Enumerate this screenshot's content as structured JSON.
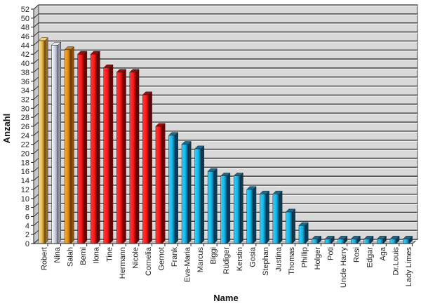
{
  "chart_data": {
    "type": "bar",
    "title": "",
    "xlabel": "Name",
    "ylabel": "Anzahl",
    "ylim": [
      0,
      52
    ],
    "ytick_step": 2,
    "grid": true,
    "style": "3d",
    "categories": [
      "Robert",
      "Nina",
      "Salah",
      "Berni",
      "Ilona",
      "Tine",
      "Hermann",
      "Nicole",
      "Cornelia",
      "Gernot",
      "Frank",
      "Eva-Maria",
      "Marcus",
      "Biggi",
      "Rüdiger",
      "Kerstin",
      "Gosia",
      "Stephan",
      "Justina",
      "Thomas",
      "Phillip",
      "Holger",
      "Poti",
      "Uncle Harry",
      "Rosi",
      "Edgar",
      "Aga",
      "Dr.Louis",
      "Lady Limes"
    ],
    "values": [
      45,
      44,
      43,
      42,
      42,
      39,
      38,
      38,
      33,
      26,
      24,
      22,
      21,
      16,
      15,
      15,
      12,
      11,
      11,
      7,
      4,
      1,
      1,
      1,
      1,
      1,
      1,
      1,
      1
    ],
    "bar_groups": [
      "gold",
      "silver",
      "bronze",
      "red",
      "red",
      "red",
      "red",
      "red",
      "red",
      "red",
      "blue",
      "blue",
      "blue",
      "blue",
      "blue",
      "blue",
      "blue",
      "blue",
      "blue",
      "blue",
      "blue",
      "blue",
      "blue",
      "blue",
      "blue",
      "blue",
      "blue",
      "blue",
      "blue"
    ]
  },
  "colors": {
    "gold": {
      "front": "#e8b84a",
      "light": "#fbe7a8",
      "dark": "#8a5a10",
      "side": "#9c6a1a",
      "top": "#f3d37a"
    },
    "silver": {
      "front": "#c9cfdc",
      "light": "#ffffff",
      "dark": "#7d8597",
      "side": "#8e96a8",
      "top": "#e6e9f0"
    },
    "bronze": {
      "front": "#e08a10",
      "light": "#ffb030",
      "dark": "#6a3a06",
      "side": "#8a5010",
      "top": "#c47a20"
    },
    "red": {
      "front": "#ff1a1a",
      "light": "#ff3a3a",
      "dark": "#8a0000",
      "side": "#6b0000",
      "top": "#9a0a0a"
    },
    "blue": {
      "front": "#12b8ea",
      "light": "#35d0ff",
      "dark": "#0a4a6a",
      "side": "#0a3a55",
      "top": "#1a6a90"
    },
    "wall": "#d9d9d9",
    "wall_side": "#c8c8c8",
    "gridline": "#333333"
  }
}
